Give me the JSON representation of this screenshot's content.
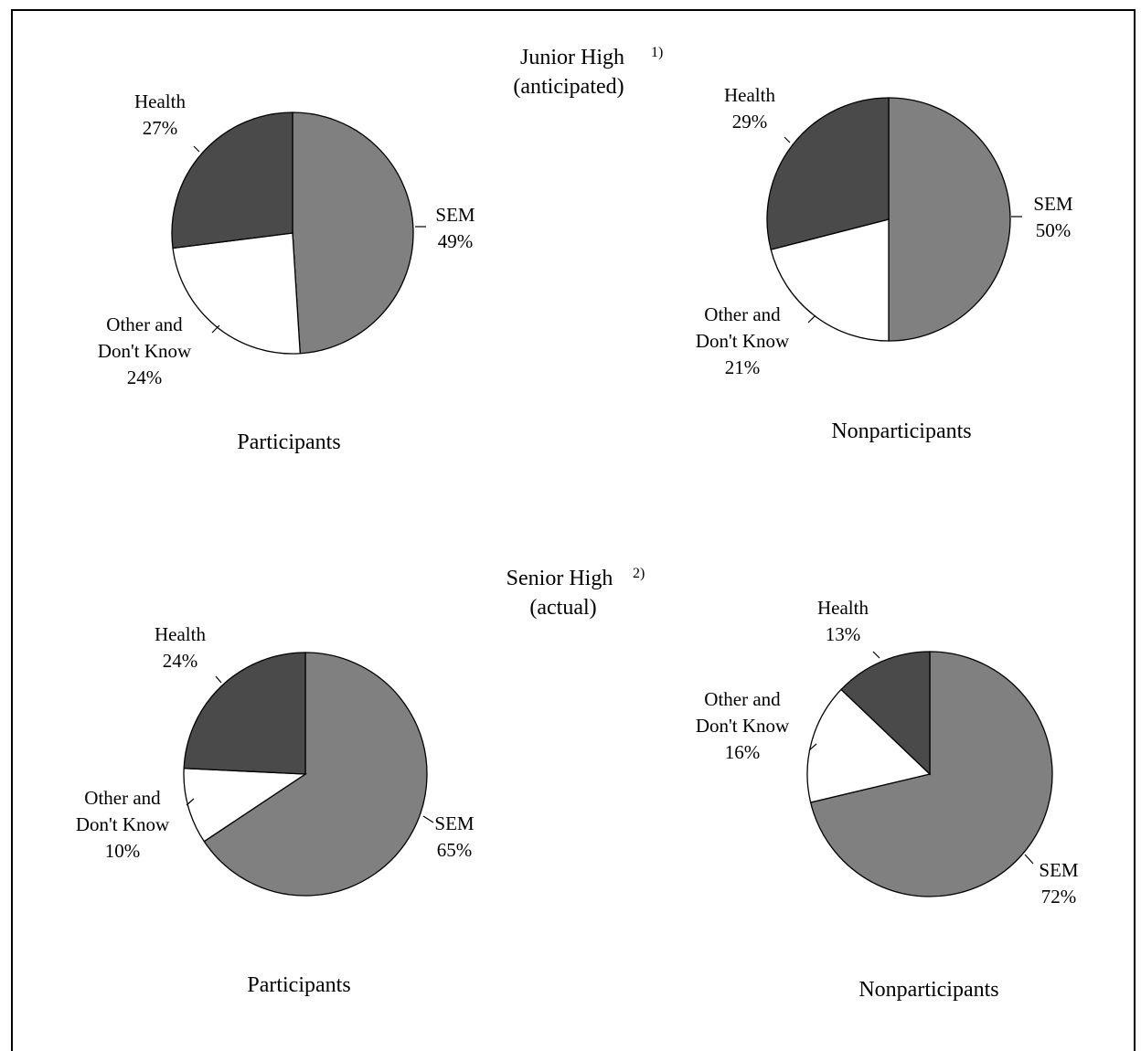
{
  "colors": {
    "sem": "#808080",
    "health": "#4a4a4a",
    "other": "#ffffff",
    "stroke": "#000000"
  },
  "sections": [
    {
      "title": "Junior High",
      "note": "1)",
      "subtitle": "(anticipated)"
    },
    {
      "title": "Senior High",
      "note": "2)",
      "subtitle": "(actual)"
    }
  ],
  "chart_data": [
    {
      "type": "pie",
      "group": "Junior High (anticipated)",
      "caption": "Participants",
      "slices": [
        {
          "name": "SEM",
          "value": 49,
          "label": "49%"
        },
        {
          "name": "Other and Don't Know",
          "line1": "Other and",
          "line2": "Don't Know",
          "value": 24,
          "label": "24%"
        },
        {
          "name": "Health",
          "value": 27,
          "label": "27%"
        }
      ]
    },
    {
      "type": "pie",
      "group": "Junior High (anticipated)",
      "caption": "Nonparticipants",
      "slices": [
        {
          "name": "SEM",
          "value": 50,
          "label": "50%"
        },
        {
          "name": "Other and Don't Know",
          "line1": "Other and",
          "line2": "Don't Know",
          "value": 21,
          "label": "21%"
        },
        {
          "name": "Health",
          "value": 29,
          "label": "29%"
        }
      ]
    },
    {
      "type": "pie",
      "group": "Senior High (actual)",
      "caption": "Participants",
      "slices": [
        {
          "name": "SEM",
          "value": 65,
          "label": "65%"
        },
        {
          "name": "Other and Don't Know",
          "line1": "Other and",
          "line2": "Don't Know",
          "value": 10,
          "label": "10%"
        },
        {
          "name": "Health",
          "value": 24,
          "label": "24%"
        }
      ]
    },
    {
      "type": "pie",
      "group": "Senior High (actual)",
      "caption": "Nonparticipants",
      "slices": [
        {
          "name": "SEM",
          "value": 72,
          "label": "72%"
        },
        {
          "name": "Other and Don't Know",
          "line1": "Other and",
          "line2": "Don't Know",
          "value": 16,
          "label": "16%"
        },
        {
          "name": "Health",
          "value": 13,
          "label": "13%"
        }
      ]
    }
  ]
}
